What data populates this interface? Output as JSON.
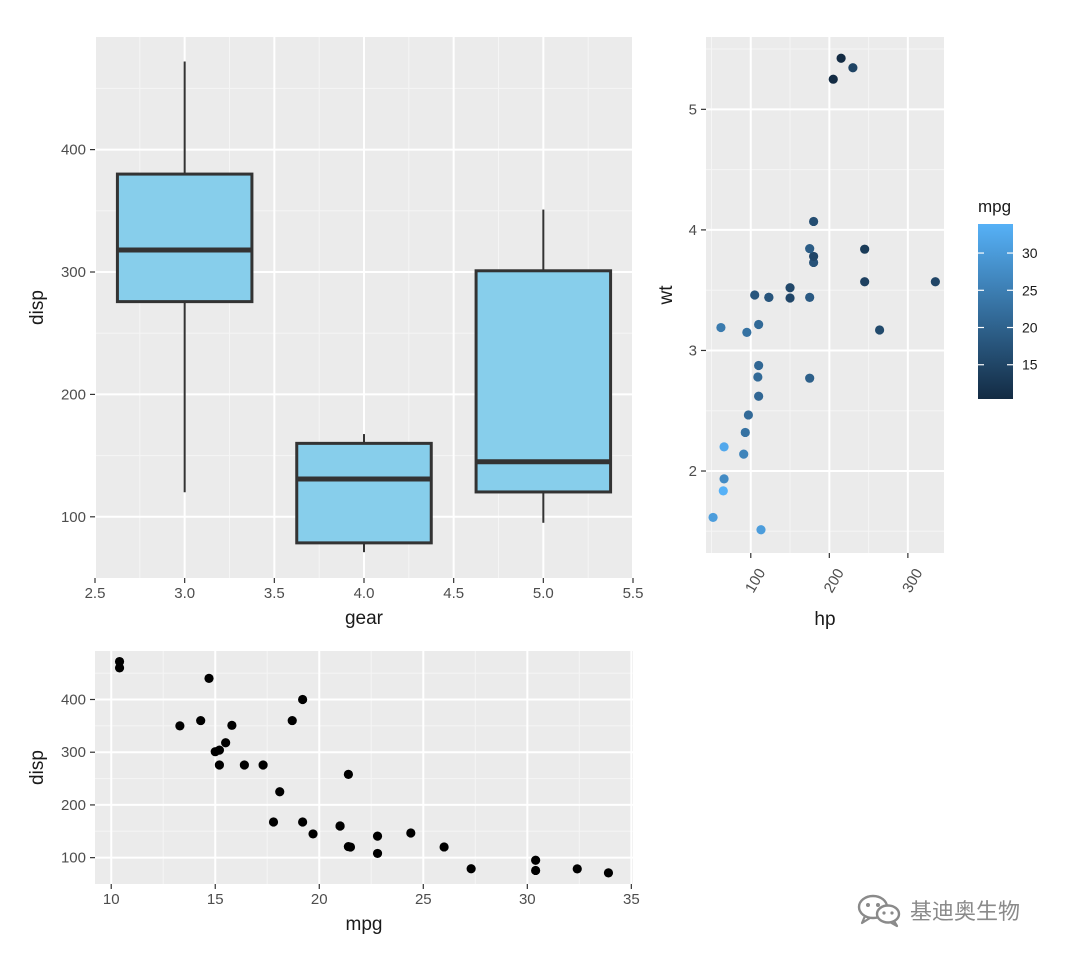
{
  "watermark": {
    "text": "基迪奥生物",
    "icon": "wechat-icon"
  },
  "colors": {
    "panel": "#ebebeb",
    "grid_major": "#ffffff",
    "box_fill": "#87ceeb",
    "box_stroke": "#333333",
    "mpg_low": "#132b43",
    "mpg_high": "#56b1f7",
    "point_black": "#000000"
  },
  "chart_data": [
    {
      "type": "box",
      "id": "boxplot",
      "xlabel": "gear",
      "ylabel": "disp",
      "xlim": [
        2.5,
        5.5
      ],
      "ylim": [
        50,
        492
      ],
      "x_ticks": [
        2.5,
        3.0,
        3.5,
        4.0,
        4.5,
        5.0,
        5.5
      ],
      "x_tick_labels": [
        "2.5",
        "3.0",
        "3.5",
        "4.0",
        "4.5",
        "5.0",
        "5.5"
      ],
      "y_ticks": [
        100,
        200,
        300,
        400
      ],
      "y_tick_labels": [
        "100",
        "200",
        "300",
        "400"
      ],
      "grid": true,
      "boxes": [
        {
          "x": 3,
          "min": 120.1,
          "q1": 275.8,
          "median": 318,
          "q3": 380,
          "max": 472
        },
        {
          "x": 4,
          "min": 71.1,
          "q1": 78.7,
          "median": 130.9,
          "q3": 160,
          "max": 167.6
        },
        {
          "x": 5,
          "min": 95.1,
          "q1": 120.3,
          "median": 145,
          "q3": 301,
          "max": 351
        }
      ]
    },
    {
      "type": "scatter",
      "id": "hp_wt",
      "xlabel": "hp",
      "ylabel": "wt",
      "xlim": [
        43,
        346
      ],
      "ylim": [
        1.32,
        5.6
      ],
      "x_ticks": [
        100,
        200,
        300
      ],
      "x_tick_labels": [
        "100",
        "200",
        "300"
      ],
      "y_ticks": [
        2,
        3,
        4,
        5
      ],
      "y_tick_labels": [
        "2",
        "3",
        "4",
        "5"
      ],
      "grid": true,
      "color_legend": {
        "title": "mpg",
        "min": 10.4,
        "max": 33.9,
        "ticks": [
          15,
          20,
          25,
          30
        ],
        "tick_labels": [
          "15",
          "20",
          "25",
          "30"
        ],
        "position": "right"
      },
      "points": [
        {
          "x": 110,
          "y": 2.62,
          "mpg": 21.0
        },
        {
          "x": 110,
          "y": 2.875,
          "mpg": 21.0
        },
        {
          "x": 93,
          "y": 2.32,
          "mpg": 22.8
        },
        {
          "x": 110,
          "y": 3.215,
          "mpg": 21.4
        },
        {
          "x": 175,
          "y": 3.44,
          "mpg": 18.7
        },
        {
          "x": 105,
          "y": 3.46,
          "mpg": 18.1
        },
        {
          "x": 245,
          "y": 3.57,
          "mpg": 14.3
        },
        {
          "x": 62,
          "y": 3.19,
          "mpg": 24.4
        },
        {
          "x": 95,
          "y": 3.15,
          "mpg": 22.8
        },
        {
          "x": 123,
          "y": 3.44,
          "mpg": 19.2
        },
        {
          "x": 123,
          "y": 3.44,
          "mpg": 17.8
        },
        {
          "x": 180,
          "y": 4.07,
          "mpg": 16.4
        },
        {
          "x": 180,
          "y": 3.73,
          "mpg": 17.3
        },
        {
          "x": 180,
          "y": 3.78,
          "mpg": 15.2
        },
        {
          "x": 205,
          "y": 5.25,
          "mpg": 10.4
        },
        {
          "x": 215,
          "y": 5.424,
          "mpg": 10.4
        },
        {
          "x": 230,
          "y": 5.345,
          "mpg": 14.7
        },
        {
          "x": 66,
          "y": 2.2,
          "mpg": 32.4
        },
        {
          "x": 52,
          "y": 1.615,
          "mpg": 30.4
        },
        {
          "x": 65,
          "y": 1.835,
          "mpg": 33.9
        },
        {
          "x": 97,
          "y": 2.465,
          "mpg": 21.5
        },
        {
          "x": 150,
          "y": 3.52,
          "mpg": 15.5
        },
        {
          "x": 150,
          "y": 3.435,
          "mpg": 15.2
        },
        {
          "x": 245,
          "y": 3.84,
          "mpg": 13.3
        },
        {
          "x": 175,
          "y": 3.845,
          "mpg": 19.2
        },
        {
          "x": 66,
          "y": 1.935,
          "mpg": 27.3
        },
        {
          "x": 91,
          "y": 2.14,
          "mpg": 26.0
        },
        {
          "x": 113,
          "y": 1.513,
          "mpg": 30.4
        },
        {
          "x": 264,
          "y": 3.17,
          "mpg": 15.8
        },
        {
          "x": 175,
          "y": 2.77,
          "mpg": 19.7
        },
        {
          "x": 335,
          "y": 3.57,
          "mpg": 15.0
        },
        {
          "x": 109,
          "y": 2.78,
          "mpg": 21.4
        }
      ]
    },
    {
      "type": "scatter",
      "id": "mpg_disp",
      "xlabel": "mpg",
      "ylabel": "disp",
      "xlim": [
        9.22,
        35.08
      ],
      "ylim": [
        50,
        492
      ],
      "x_ticks": [
        10,
        15,
        20,
        25,
        30,
        35
      ],
      "x_tick_labels": [
        "10",
        "15",
        "20",
        "25",
        "30",
        "35"
      ],
      "y_ticks": [
        100,
        200,
        300,
        400
      ],
      "y_tick_labels": [
        "100",
        "200",
        "300",
        "400"
      ],
      "grid": true,
      "points": [
        {
          "x": 21.0,
          "y": 160
        },
        {
          "x": 21.0,
          "y": 160
        },
        {
          "x": 22.8,
          "y": 108
        },
        {
          "x": 21.4,
          "y": 258
        },
        {
          "x": 18.7,
          "y": 360
        },
        {
          "x": 18.1,
          "y": 225
        },
        {
          "x": 14.3,
          "y": 360
        },
        {
          "x": 24.4,
          "y": 146.7
        },
        {
          "x": 22.8,
          "y": 140.8
        },
        {
          "x": 19.2,
          "y": 167.6
        },
        {
          "x": 17.8,
          "y": 167.6
        },
        {
          "x": 16.4,
          "y": 275.8
        },
        {
          "x": 17.3,
          "y": 275.8
        },
        {
          "x": 15.2,
          "y": 275.8
        },
        {
          "x": 10.4,
          "y": 472
        },
        {
          "x": 10.4,
          "y": 460
        },
        {
          "x": 14.7,
          "y": 440
        },
        {
          "x": 32.4,
          "y": 78.7
        },
        {
          "x": 30.4,
          "y": 75.7
        },
        {
          "x": 33.9,
          "y": 71.1
        },
        {
          "x": 21.5,
          "y": 120.1
        },
        {
          "x": 15.5,
          "y": 318
        },
        {
          "x": 15.2,
          "y": 304
        },
        {
          "x": 13.3,
          "y": 350
        },
        {
          "x": 19.2,
          "y": 400
        },
        {
          "x": 27.3,
          "y": 79
        },
        {
          "x": 26.0,
          "y": 120.3
        },
        {
          "x": 30.4,
          "y": 95.1
        },
        {
          "x": 15.8,
          "y": 351
        },
        {
          "x": 19.7,
          "y": 145
        },
        {
          "x": 15.0,
          "y": 301
        },
        {
          "x": 21.4,
          "y": 121
        }
      ]
    }
  ]
}
